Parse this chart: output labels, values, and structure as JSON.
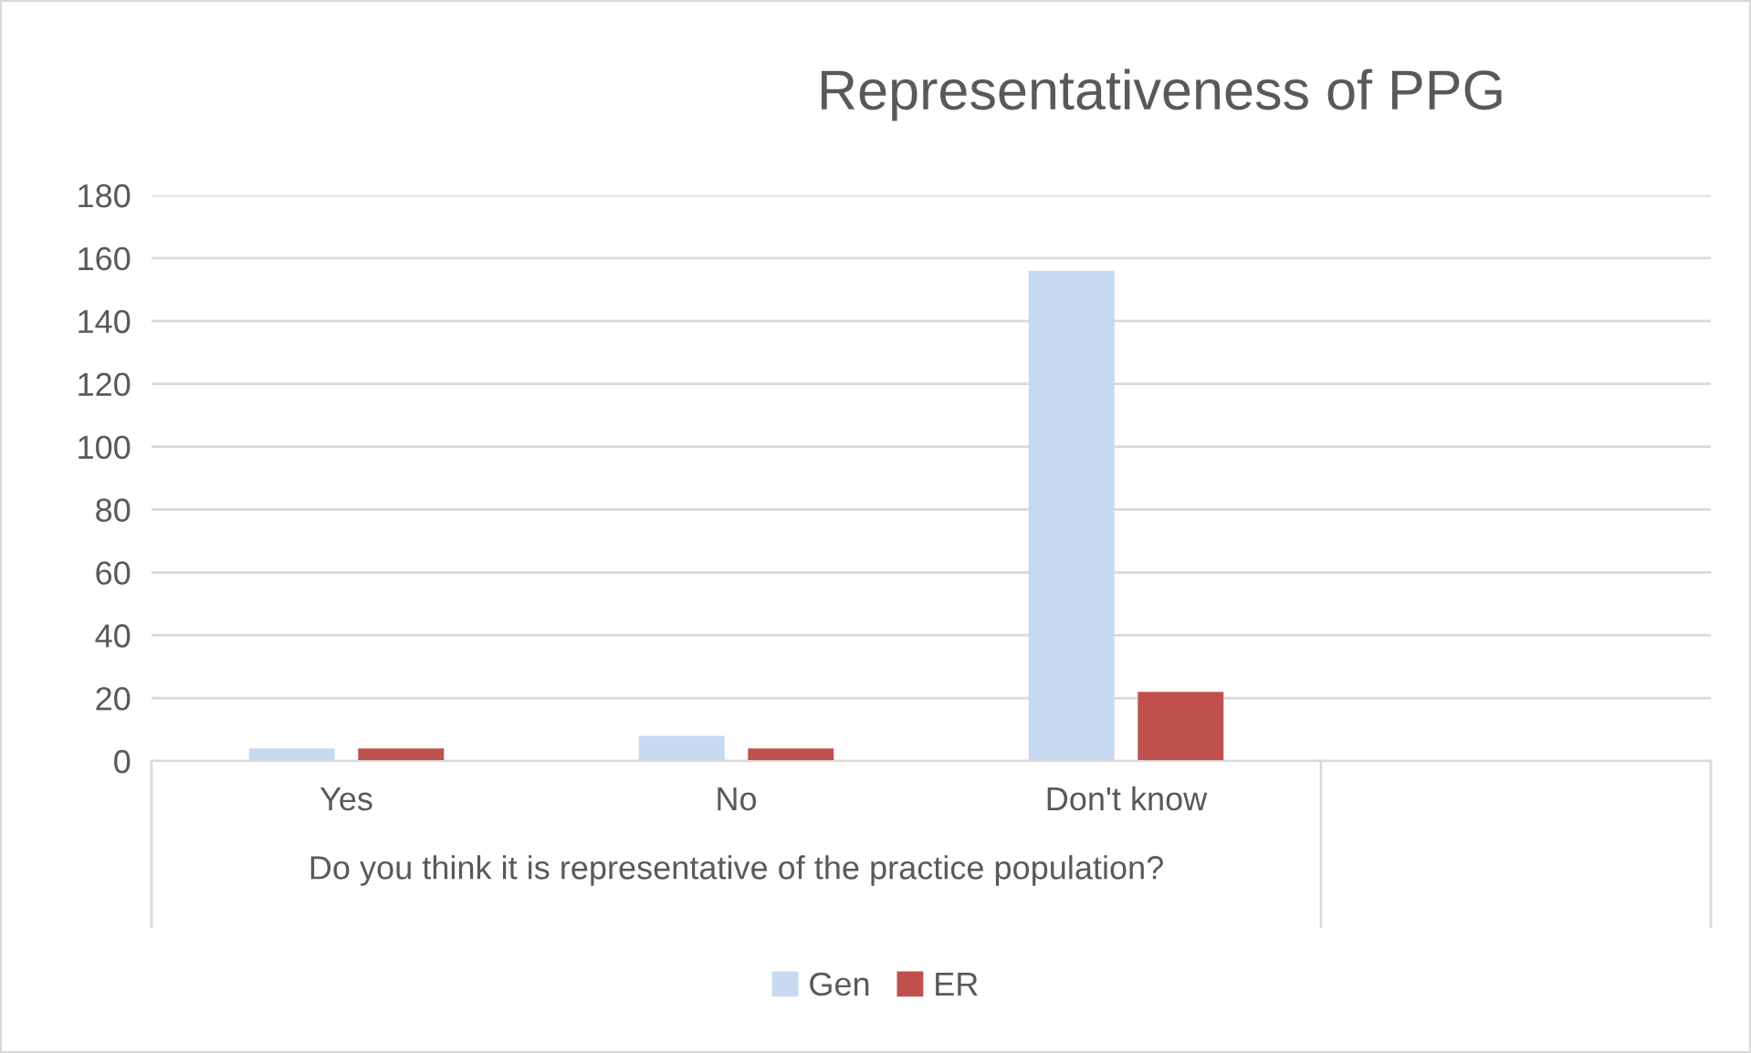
{
  "chart_data": {
    "type": "bar",
    "title": "Representativeness of PPG",
    "xlabel": "Do you think it is representative of the practice population?",
    "categories": [
      "Yes",
      "No",
      "Don't know",
      null
    ],
    "series": [
      {
        "name": "Gen",
        "color": "#c6d9f0",
        "values": [
          4,
          8,
          156,
          null
        ]
      },
      {
        "name": "ER",
        "color": "#c0504d",
        "values": [
          4,
          4,
          22,
          null
        ]
      }
    ],
    "ylim": [
      0,
      180
    ],
    "yticks": [
      0,
      20,
      40,
      60,
      80,
      100,
      120,
      140,
      160,
      180
    ],
    "grid": "y",
    "legend": "bottom"
  }
}
